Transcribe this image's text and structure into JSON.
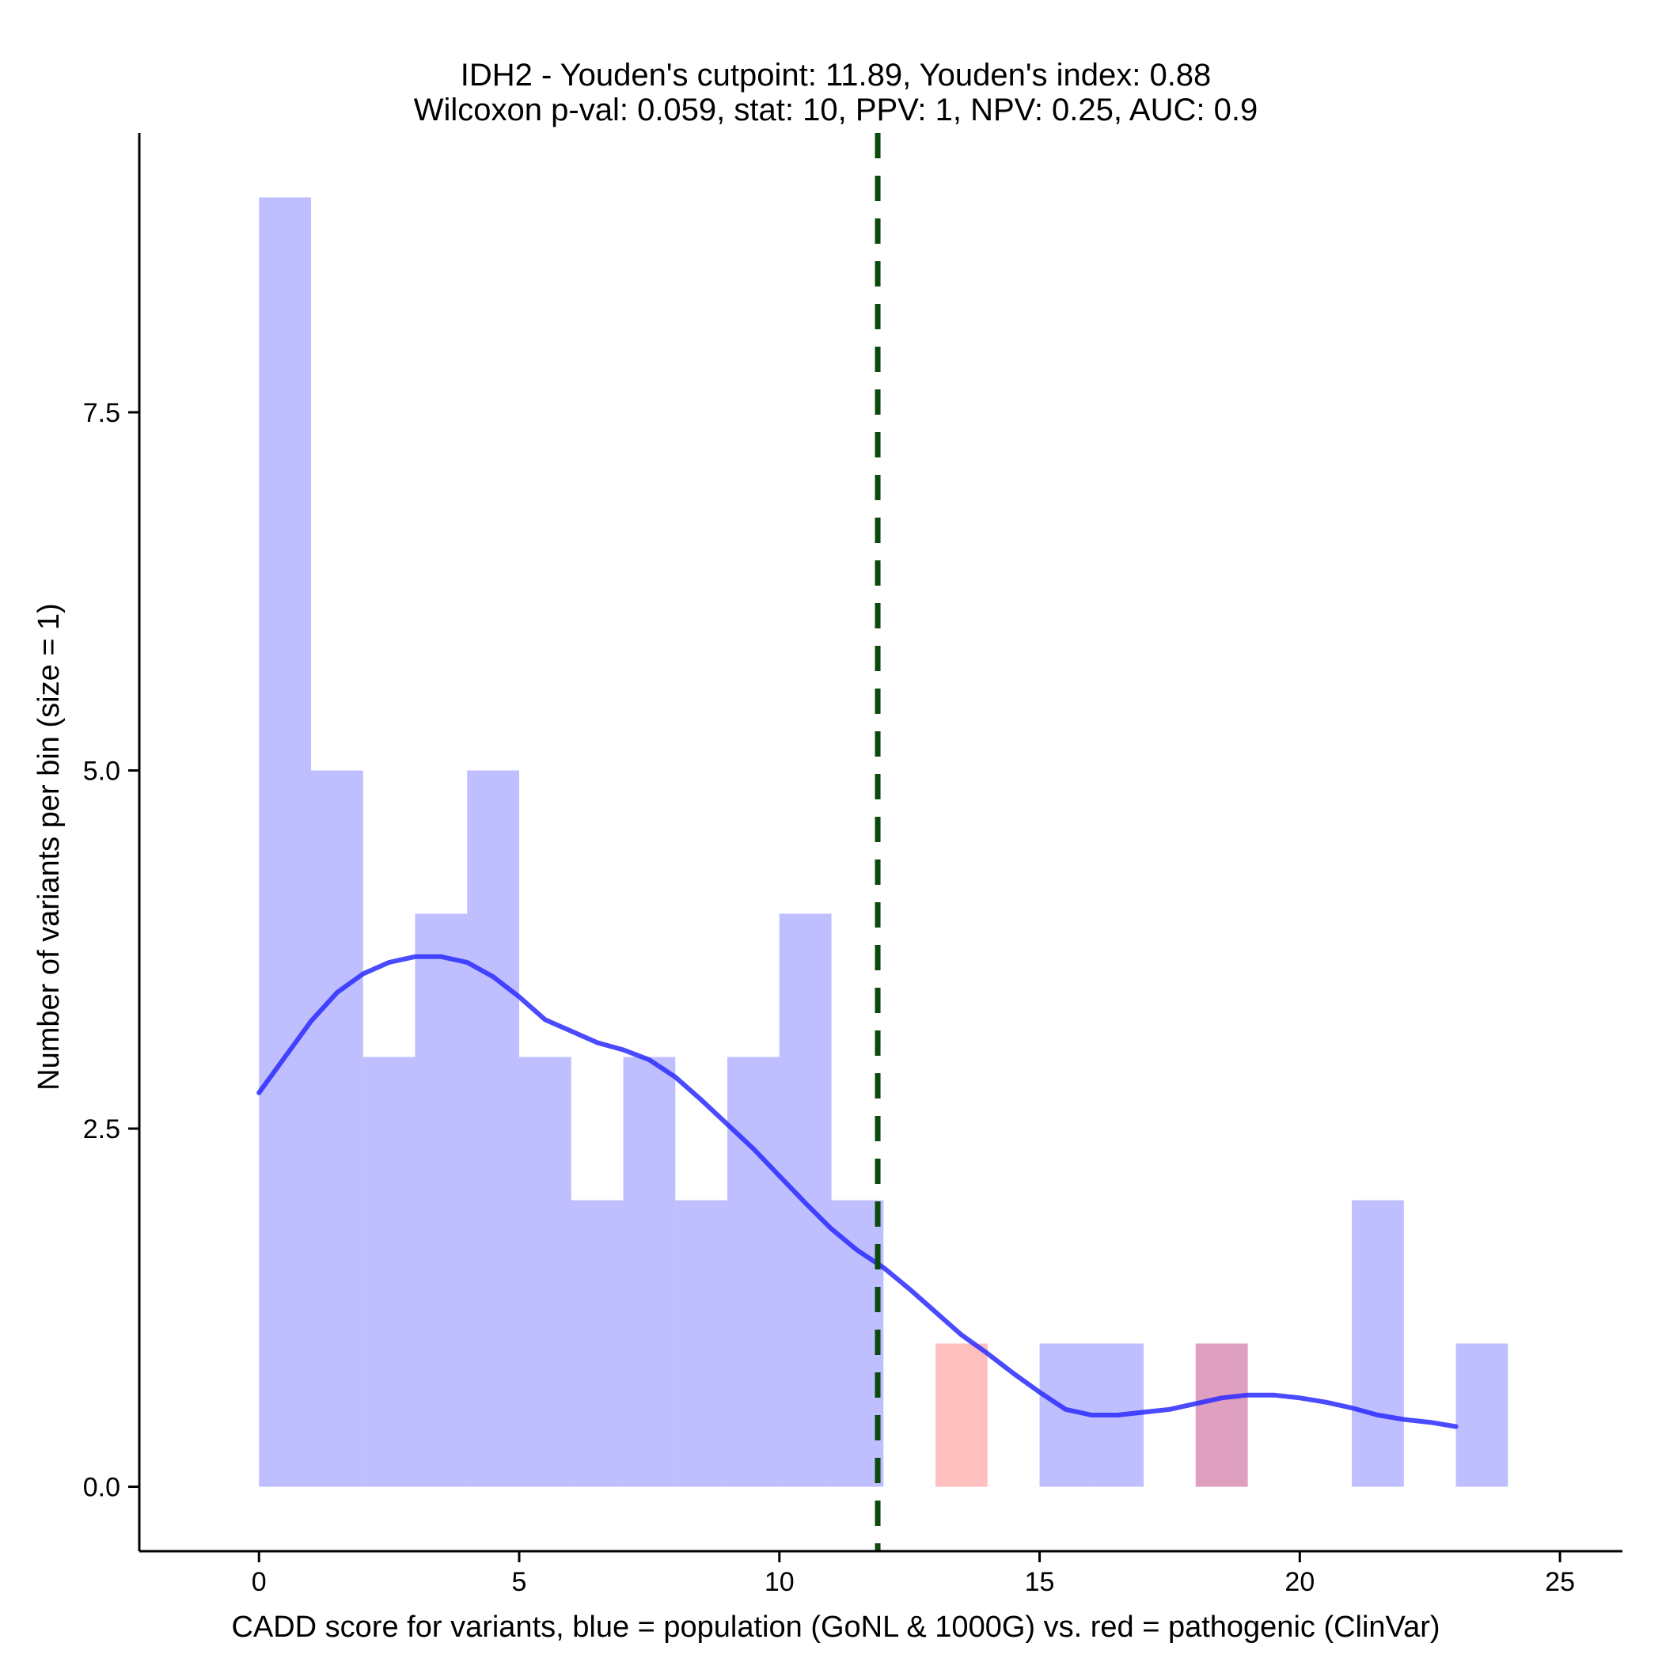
{
  "chart_data": {
    "type": "histogram",
    "title_lines": [
      "IDH2 - Youden's cutpoint: 11.89, Youden's index: 0.88",
      "Wilcoxon p-val: 0.059, stat: 10, PPV: 1, NPV: 0.25, AUC: 0.9"
    ],
    "xlabel": "CADD score for variants, blue = population (GoNL & 1000G) vs. red = pathogenic (ClinVar)",
    "ylabel": "Number of variants per bin (size = 1)",
    "xlim": [
      -2.3,
      26.2
    ],
    "ylim": [
      -0.45,
      9.45
    ],
    "x_ticks": [
      0,
      5,
      10,
      15,
      20,
      25
    ],
    "x_tick_labels": [
      "0",
      "5",
      "10",
      "15",
      "20",
      "25"
    ],
    "y_ticks": [
      0,
      2.5,
      5,
      7.5
    ],
    "y_tick_labels": [
      "0.0",
      "2.5",
      "5.0",
      "7.5"
    ],
    "bin_width": 1,
    "series": [
      {
        "name": "population (GoNL & 1000G)",
        "color": "#8080ff",
        "opacity": 0.5,
        "bins": [
          {
            "x0": 0,
            "count": 9
          },
          {
            "x0": 1,
            "count": 5
          },
          {
            "x0": 2,
            "count": 3
          },
          {
            "x0": 3,
            "count": 4
          },
          {
            "x0": 4,
            "count": 5
          },
          {
            "x0": 5,
            "count": 3
          },
          {
            "x0": 6,
            "count": 2
          },
          {
            "x0": 7,
            "count": 3
          },
          {
            "x0": 8,
            "count": 2
          },
          {
            "x0": 9,
            "count": 3
          },
          {
            "x0": 10,
            "count": 4
          },
          {
            "x0": 11,
            "count": 2
          },
          {
            "x0": 15,
            "count": 1
          },
          {
            "x0": 16,
            "count": 1
          },
          {
            "x0": 18,
            "count": 1
          },
          {
            "x0": 21,
            "count": 2
          },
          {
            "x0": 23,
            "count": 1
          }
        ]
      },
      {
        "name": "pathogenic (ClinVar)",
        "color": "#ff8080",
        "opacity": 0.5,
        "bins": [
          {
            "x0": 13,
            "count": 1
          },
          {
            "x0": 18,
            "count": 1
          }
        ]
      }
    ],
    "density_curve": {
      "color": "#2a2aff",
      "x": [
        0,
        0.5,
        1,
        1.5,
        2,
        2.5,
        3,
        3.5,
        4,
        4.5,
        5,
        5.5,
        6,
        6.5,
        7,
        7.5,
        8,
        8.5,
        9,
        9.5,
        10,
        10.5,
        11,
        11.5,
        12,
        12.5,
        13,
        13.5,
        14,
        14.5,
        15,
        15.5,
        16,
        16.5,
        17,
        17.5,
        18,
        18.5,
        19,
        19.5,
        20,
        20.5,
        21,
        21.5,
        22,
        22.5,
        23
      ],
      "y": [
        2.75,
        3.0,
        3.25,
        3.45,
        3.58,
        3.66,
        3.7,
        3.7,
        3.66,
        3.56,
        3.42,
        3.26,
        3.18,
        3.1,
        3.05,
        2.98,
        2.86,
        2.7,
        2.53,
        2.36,
        2.17,
        1.98,
        1.8,
        1.65,
        1.53,
        1.38,
        1.22,
        1.06,
        0.93,
        0.79,
        0.66,
        0.54,
        0.5,
        0.5,
        0.52,
        0.54,
        0.58,
        0.62,
        0.64,
        0.64,
        0.62,
        0.59,
        0.55,
        0.5,
        0.47,
        0.45,
        0.42
      ]
    },
    "cutpoint_line": {
      "x": 11.89,
      "color": "#0b4a0b",
      "style": "dashed"
    },
    "grid": false,
    "legend": "none"
  }
}
